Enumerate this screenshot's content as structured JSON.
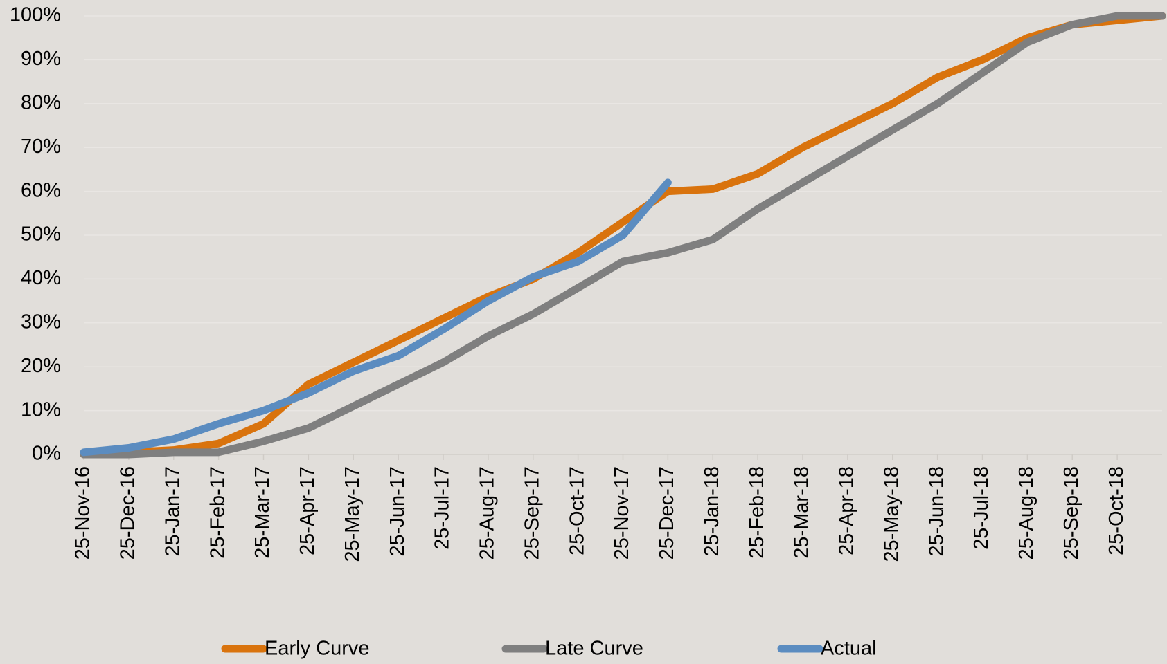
{
  "chart_data": {
    "type": "line",
    "categories": [
      "25-Nov-16",
      "25-Dec-16",
      "25-Jan-17",
      "25-Feb-17",
      "25-Mar-17",
      "25-Apr-17",
      "25-May-17",
      "25-Jun-17",
      "25-Jul-17",
      "25-Aug-17",
      "25-Sep-17",
      "25-Oct-17",
      "25-Nov-17",
      "25-Dec-17",
      "25-Jan-18",
      "25-Feb-18",
      "25-Mar-18",
      "25-Apr-18",
      "25-May-18",
      "25-Jun-18",
      "25-Jul-18",
      "25-Aug-18",
      "25-Sep-18",
      "25-Oct-18",
      null
    ],
    "series": [
      {
        "name": "Early Curve",
        "color": "#d9730d",
        "values": [
          0,
          0.5,
          1,
          2.5,
          7,
          16,
          21,
          26,
          31,
          36,
          40,
          46,
          53,
          60,
          60.5,
          64,
          70,
          75,
          80,
          86,
          90,
          95,
          98,
          99,
          100
        ]
      },
      {
        "name": "Late Curve",
        "color": "#7f7f7f",
        "values": [
          0,
          0,
          0.5,
          0.5,
          3,
          6,
          11,
          16,
          21,
          27,
          32,
          38,
          44,
          46,
          49,
          56,
          62,
          68,
          74,
          80,
          87,
          94,
          98,
          100,
          100
        ]
      },
      {
        "name": "Actual",
        "color": "#5b8cc0",
        "values": [
          0.5,
          1.5,
          3.5,
          7,
          10,
          14,
          19,
          22.5,
          28.5,
          35,
          40.5,
          44,
          50,
          62,
          null,
          null,
          null,
          null,
          null,
          null,
          null,
          null,
          null,
          null,
          null
        ]
      }
    ],
    "ylim": [
      0,
      100
    ],
    "yticks": [
      {
        "value": 0,
        "label": "0%"
      },
      {
        "value": 10,
        "label": "10%"
      },
      {
        "value": 20,
        "label": "20%"
      },
      {
        "value": 30,
        "label": "30%"
      },
      {
        "value": 40,
        "label": "40%"
      },
      {
        "value": 50,
        "label": "50%"
      },
      {
        "value": 60,
        "label": "60%"
      },
      {
        "value": 70,
        "label": "70%"
      },
      {
        "value": 80,
        "label": "80%"
      },
      {
        "value": 90,
        "label": "90%"
      },
      {
        "value": 100,
        "label": "100%"
      }
    ],
    "grid": true,
    "legend": "bottom"
  }
}
